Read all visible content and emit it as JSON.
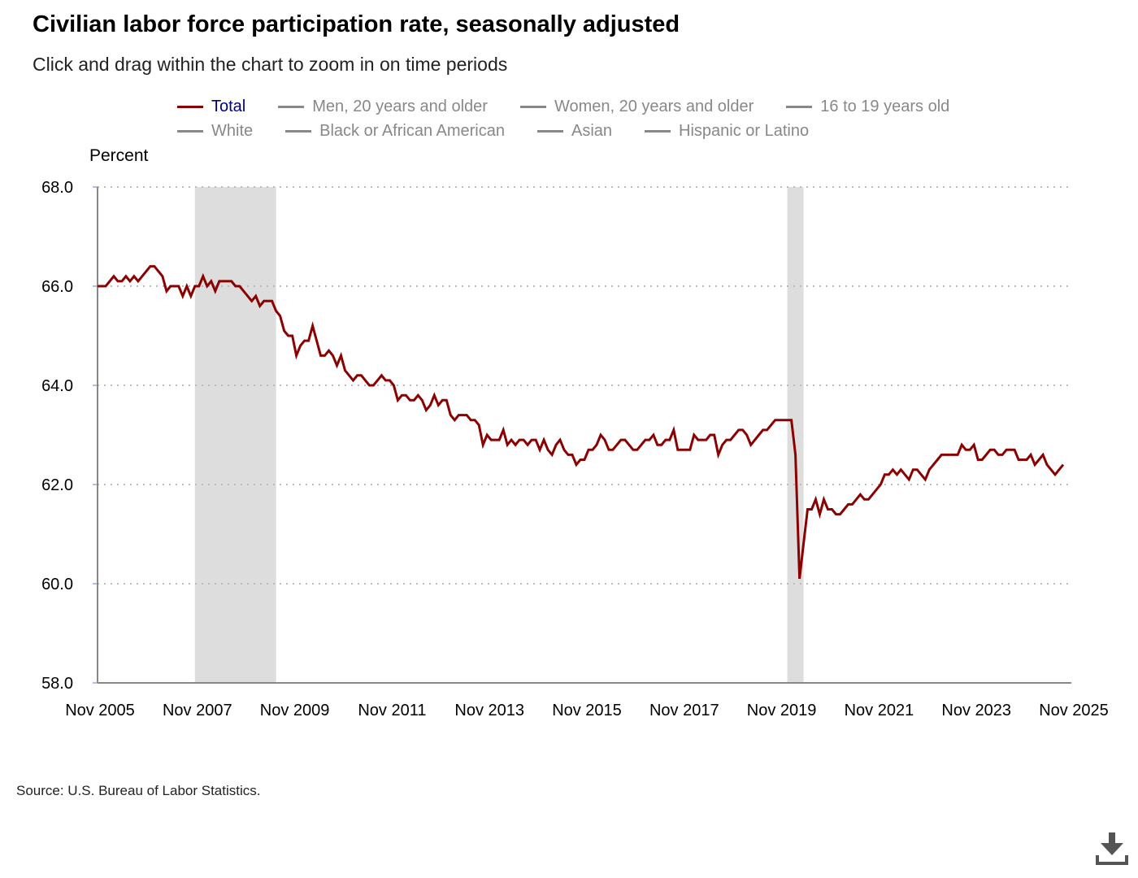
{
  "title": "Civilian labor force participation rate, seasonally adjusted",
  "subtitle": "Click and drag within the chart to zoom in on time periods",
  "legend_row1": [
    "Total",
    "Men, 20 years and older",
    "Women, 20 years and older",
    "16 to 19 years old"
  ],
  "legend_row2": [
    "White",
    "Black or African American",
    "Asian",
    "Hispanic or Latino"
  ],
  "source": "Source: U.S. Bureau of Labor Statistics.",
  "colors": {
    "total": "#8b0000",
    "inactive": "#888888",
    "recession": "#dddddd"
  },
  "icons": {
    "download": "download-icon"
  },
  "chart_data": {
    "type": "line",
    "title": "Civilian labor force participation rate, seasonally adjusted",
    "ylabel": "Percent",
    "ylim": [
      58,
      68
    ],
    "yticks": [
      "58.0",
      "60.0",
      "62.0",
      "64.0",
      "66.0",
      "68.0"
    ],
    "xticks": [
      "Nov 2005",
      "Nov 2007",
      "Nov 2009",
      "Nov 2011",
      "Nov 2013",
      "Nov 2015",
      "Nov 2017",
      "Nov 2019",
      "Nov 2021",
      "Nov 2023",
      "Nov 2025"
    ],
    "x_start": "Nov 2005",
    "x_end": "Nov 2025",
    "frequency": "monthly",
    "recessions": [
      {
        "start": "Dec 2007",
        "end": "Jun 2009"
      },
      {
        "start": "Feb 2020",
        "end": "Apr 2020"
      }
    ],
    "series": [
      {
        "name": "Total",
        "values": [
          66.0,
          66.0,
          66.0,
          66.1,
          66.2,
          66.1,
          66.1,
          66.2,
          66.1,
          66.2,
          66.1,
          66.2,
          66.3,
          66.4,
          66.4,
          66.3,
          66.2,
          65.9,
          66.0,
          66.0,
          66.0,
          65.8,
          66.0,
          65.8,
          66.0,
          66.0,
          66.2,
          66.0,
          66.1,
          65.9,
          66.1,
          66.1,
          66.1,
          66.1,
          66.0,
          66.0,
          65.9,
          65.8,
          65.7,
          65.8,
          65.6,
          65.7,
          65.7,
          65.7,
          65.5,
          65.4,
          65.1,
          65.0,
          65.0,
          64.6,
          64.8,
          64.9,
          64.9,
          65.2,
          64.9,
          64.6,
          64.6,
          64.7,
          64.6,
          64.4,
          64.6,
          64.3,
          64.2,
          64.1,
          64.2,
          64.2,
          64.1,
          64.0,
          64.0,
          64.1,
          64.2,
          64.1,
          64.1,
          64.0,
          63.7,
          63.8,
          63.8,
          63.7,
          63.7,
          63.8,
          63.7,
          63.5,
          63.6,
          63.8,
          63.6,
          63.7,
          63.7,
          63.4,
          63.3,
          63.4,
          63.4,
          63.4,
          63.3,
          63.3,
          63.2,
          62.8,
          63.0,
          62.9,
          62.9,
          62.9,
          63.1,
          62.8,
          62.9,
          62.8,
          62.9,
          62.9,
          62.8,
          62.9,
          62.9,
          62.7,
          62.9,
          62.7,
          62.6,
          62.8,
          62.9,
          62.7,
          62.6,
          62.6,
          62.4,
          62.5,
          62.5,
          62.7,
          62.7,
          62.8,
          63.0,
          62.9,
          62.7,
          62.7,
          62.8,
          62.9,
          62.9,
          62.8,
          62.7,
          62.7,
          62.8,
          62.9,
          62.9,
          63.0,
          62.8,
          62.8,
          62.9,
          62.9,
          63.1,
          62.7,
          62.7,
          62.7,
          62.7,
          63.0,
          62.9,
          62.9,
          62.9,
          63.0,
          63.0,
          62.6,
          62.8,
          62.9,
          62.9,
          63.0,
          63.1,
          63.1,
          63.0,
          62.8,
          62.9,
          63.0,
          63.1,
          63.1,
          63.2,
          63.3,
          63.3,
          63.3,
          63.3,
          63.3,
          62.6,
          60.1,
          60.8,
          61.5,
          61.5,
          61.7,
          61.4,
          61.7,
          61.5,
          61.5,
          61.4,
          61.4,
          61.5,
          61.6,
          61.6,
          61.7,
          61.8,
          61.7,
          61.7,
          61.8,
          61.9,
          62.0,
          62.2,
          62.2,
          62.3,
          62.2,
          62.3,
          62.2,
          62.1,
          62.3,
          62.3,
          62.2,
          62.1,
          62.3,
          62.4,
          62.5,
          62.6,
          62.6,
          62.6,
          62.6,
          62.6,
          62.8,
          62.7,
          62.7,
          62.8,
          62.5,
          62.5,
          62.6,
          62.7,
          62.7,
          62.6,
          62.6,
          62.7,
          62.7,
          62.7,
          62.5,
          62.5,
          62.5,
          62.6,
          62.4,
          62.5,
          62.6,
          62.4,
          62.3,
          62.2,
          62.3,
          62.4
        ]
      }
    ]
  }
}
